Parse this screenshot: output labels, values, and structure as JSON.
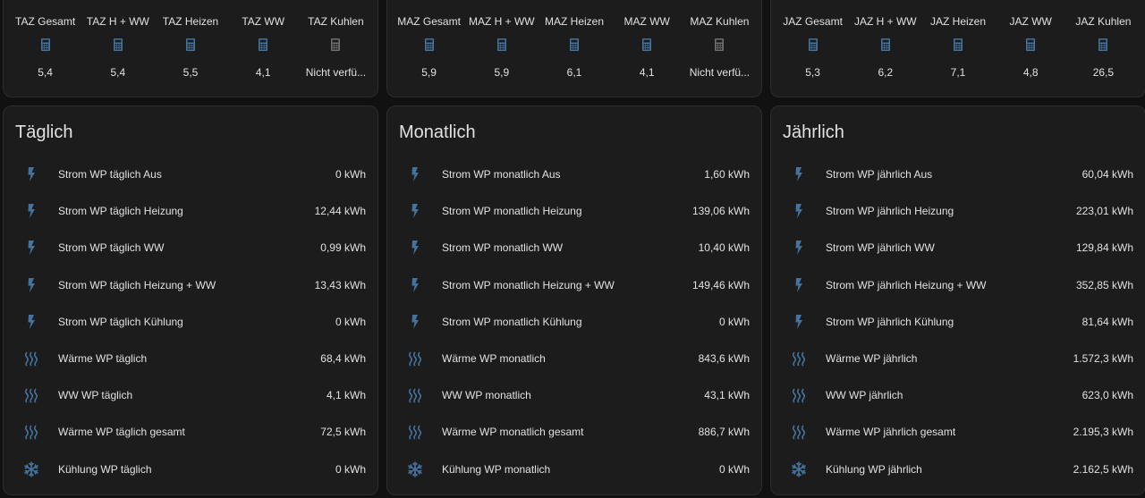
{
  "colors": {
    "icon_blue": "#44739e",
    "icon_gray": "#6f6f6f",
    "card_bg": "#1c1c1c",
    "page_bg": "#111111"
  },
  "columns": [
    {
      "glance": [
        {
          "name": "TAZ Gesamt",
          "value": "5,4",
          "icon": "calculator-icon",
          "available": true
        },
        {
          "name": "TAZ H + WW",
          "value": "5,4",
          "icon": "calculator-icon",
          "available": true
        },
        {
          "name": "TAZ Heizen",
          "value": "5,5",
          "icon": "calculator-icon",
          "available": true
        },
        {
          "name": "TAZ WW",
          "value": "4,1",
          "icon": "calculator-icon",
          "available": true
        },
        {
          "name": "TAZ Kuhlen",
          "value": "Nicht verfü...",
          "icon": "calculator-icon",
          "available": false
        }
      ],
      "title": "Täglich",
      "rows": [
        {
          "icon": "flash-icon",
          "name": "Strom WP täglich Aus",
          "value": "0 kWh"
        },
        {
          "icon": "flash-icon",
          "name": "Strom WP täglich Heizung",
          "value": "12,44 kWh"
        },
        {
          "icon": "flash-icon",
          "name": "Strom WP täglich WW",
          "value": "0,99 kWh"
        },
        {
          "icon": "flash-icon",
          "name": "Strom WP täglich Heizung + WW",
          "value": "13,43 kWh"
        },
        {
          "icon": "flash-icon",
          "name": "Strom WP täglich Kühlung",
          "value": "0 kWh"
        },
        {
          "icon": "heat-wave-icon",
          "name": "Wärme WP täglich",
          "value": "68,4 kWh"
        },
        {
          "icon": "heat-wave-icon",
          "name": "WW WP täglich",
          "value": "4,1 kWh"
        },
        {
          "icon": "heat-wave-icon",
          "name": "Wärme WP täglich gesamt",
          "value": "72,5 kWh"
        },
        {
          "icon": "snowflake-icon",
          "name": "Kühlung WP täglich",
          "value": "0 kWh"
        }
      ]
    },
    {
      "glance": [
        {
          "name": "MAZ Gesamt",
          "value": "5,9",
          "icon": "calculator-icon",
          "available": true
        },
        {
          "name": "MAZ H + WW",
          "value": "5,9",
          "icon": "calculator-icon",
          "available": true
        },
        {
          "name": "MAZ Heizen",
          "value": "6,1",
          "icon": "calculator-icon",
          "available": true
        },
        {
          "name": "MAZ WW",
          "value": "4,1",
          "icon": "calculator-icon",
          "available": true
        },
        {
          "name": "MAZ Kuhlen",
          "value": "Nicht verfü...",
          "icon": "calculator-icon",
          "available": false
        }
      ],
      "title": "Monatlich",
      "rows": [
        {
          "icon": "flash-icon",
          "name": "Strom WP monatlich Aus",
          "value": "1,60 kWh"
        },
        {
          "icon": "flash-icon",
          "name": "Strom WP monatlich Heizung",
          "value": "139,06 kWh"
        },
        {
          "icon": "flash-icon",
          "name": "Strom WP monatlich WW",
          "value": "10,40 kWh"
        },
        {
          "icon": "flash-icon",
          "name": "Strom WP monatlich Heizung + WW",
          "value": "149,46 kWh"
        },
        {
          "icon": "flash-icon",
          "name": "Strom WP monatlich Kühlung",
          "value": "0 kWh"
        },
        {
          "icon": "heat-wave-icon",
          "name": "Wärme WP monatlich",
          "value": "843,6 kWh"
        },
        {
          "icon": "heat-wave-icon",
          "name": "WW WP monatlich",
          "value": "43,1 kWh"
        },
        {
          "icon": "heat-wave-icon",
          "name": "Wärme WP monatlich gesamt",
          "value": "886,7 kWh"
        },
        {
          "icon": "snowflake-icon",
          "name": "Kühlung WP monatlich",
          "value": "0 kWh"
        }
      ]
    },
    {
      "glance": [
        {
          "name": "JAZ Gesamt",
          "value": "5,3",
          "icon": "calculator-icon",
          "available": true
        },
        {
          "name": "JAZ H + WW",
          "value": "6,2",
          "icon": "calculator-icon",
          "available": true
        },
        {
          "name": "JAZ Heizen",
          "value": "7,1",
          "icon": "calculator-icon",
          "available": true
        },
        {
          "name": "JAZ WW",
          "value": "4,8",
          "icon": "calculator-icon",
          "available": true
        },
        {
          "name": "JAZ Kuhlen",
          "value": "26,5",
          "icon": "calculator-icon",
          "available": true
        }
      ],
      "title": "Jährlich",
      "rows": [
        {
          "icon": "flash-icon",
          "name": "Strom WP jährlich Aus",
          "value": "60,04 kWh"
        },
        {
          "icon": "flash-icon",
          "name": "Strom WP jährlich Heizung",
          "value": "223,01 kWh"
        },
        {
          "icon": "flash-icon",
          "name": "Strom WP jährlich WW",
          "value": "129,84 kWh"
        },
        {
          "icon": "flash-icon",
          "name": "Strom WP jährlich Heizung + WW",
          "value": "352,85 kWh"
        },
        {
          "icon": "flash-icon",
          "name": "Strom WP jährlich Kühlung",
          "value": "81,64 kWh"
        },
        {
          "icon": "heat-wave-icon",
          "name": "Wärme WP jährlich",
          "value": "1.572,3 kWh"
        },
        {
          "icon": "heat-wave-icon",
          "name": "WW WP jährlich",
          "value": "623,0 kWh"
        },
        {
          "icon": "heat-wave-icon",
          "name": "Wärme WP jährlich gesamt",
          "value": "2.195,3 kWh"
        },
        {
          "icon": "snowflake-icon",
          "name": "Kühlung WP jährlich",
          "value": "2.162,5 kWh"
        }
      ]
    }
  ]
}
